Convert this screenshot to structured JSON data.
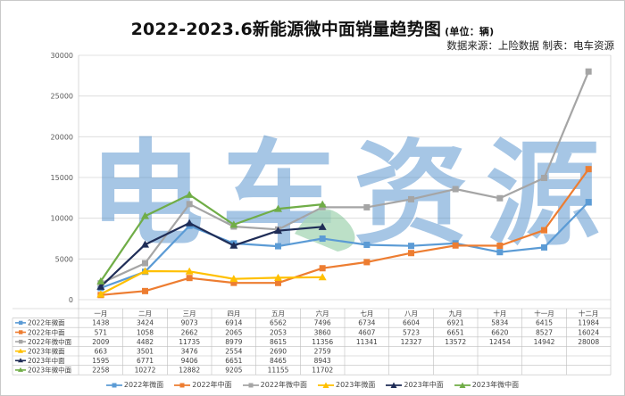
{
  "title": "2022-2023.6新能源微中面销量趋势图",
  "unit": "(单位：辆)",
  "source": "数据来源：上险数据 制表：电车资源",
  "watermark": "电车资源",
  "chart_data": {
    "type": "line",
    "categories": [
      "一月",
      "二月",
      "三月",
      "四月",
      "五月",
      "六月",
      "七月",
      "八月",
      "九月",
      "十月",
      "十一月",
      "十二月"
    ],
    "ylim": [
      0,
      30000
    ],
    "yticks": [
      0,
      5000,
      10000,
      15000,
      20000,
      25000,
      30000
    ],
    "ytick_labels": [
      "0",
      "5000",
      "10000",
      "15000",
      "20000",
      "25000",
      "30000"
    ],
    "grid": true,
    "legend_position": "bottom",
    "series": [
      {
        "name": "2022年微面",
        "color": "#5b9bd5",
        "marker": "square",
        "values": [
          1438,
          3424,
          9073,
          6914,
          6562,
          7496,
          6734,
          6604,
          6921,
          5834,
          6415,
          11984
        ]
      },
      {
        "name": "2022年中面",
        "color": "#ed7d31",
        "marker": "square",
        "values": [
          571,
          1058,
          2662,
          2065,
          2053,
          3860,
          4607,
          5723,
          6651,
          6620,
          8527,
          16024
        ]
      },
      {
        "name": "2022年微中面",
        "color": "#a5a5a5",
        "marker": "square",
        "values": [
          2009,
          4482,
          11735,
          8979,
          8615,
          11356,
          11341,
          12327,
          13572,
          12454,
          14942,
          28008
        ]
      },
      {
        "name": "2023年微面",
        "color": "#ffc000",
        "marker": "triangle",
        "values": [
          663,
          3501,
          3476,
          2554,
          2690,
          2759,
          null,
          null,
          null,
          null,
          null,
          null
        ]
      },
      {
        "name": "2023年中面",
        "color": "#1f2d57",
        "marker": "triangle",
        "values": [
          1595,
          6771,
          9406,
          6651,
          8465,
          8943,
          null,
          null,
          null,
          null,
          null,
          null
        ]
      },
      {
        "name": "2023年微中面",
        "color": "#70ad47",
        "marker": "triangle",
        "values": [
          2258,
          10272,
          12882,
          9205,
          11155,
          11702,
          null,
          null,
          null,
          null,
          null,
          null
        ]
      }
    ]
  }
}
